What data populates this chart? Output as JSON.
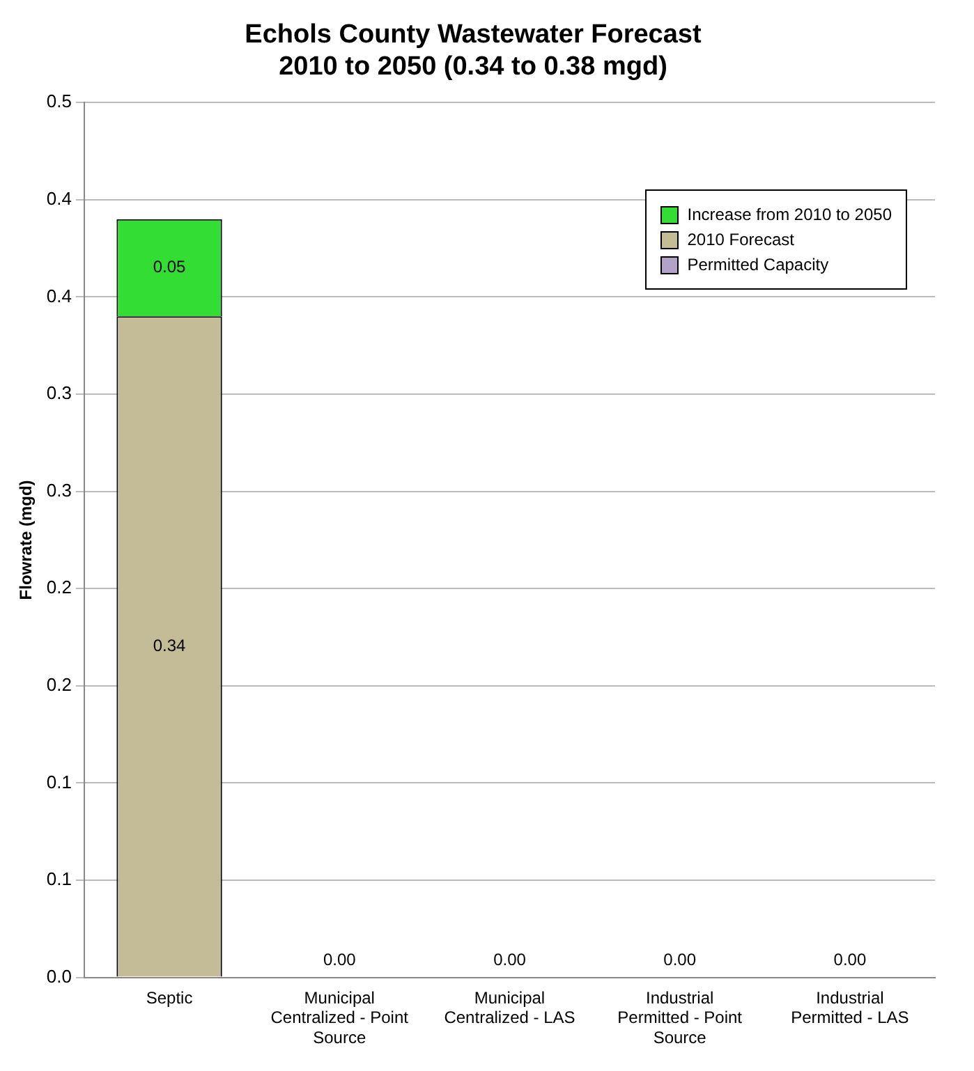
{
  "chart_data": {
    "type": "bar",
    "title": "Echols County Wastewater Forecast\n2010 to 2050 (0.34 to 0.38 mgd)",
    "ylabel": "Flowrate (mgd)",
    "categories": [
      "Septic",
      "Municipal\nCentralized - Point\nSource",
      "Municipal\nCentralized - LAS",
      "Industrial\nPermitted - Point\nSource",
      "Industrial\nPermitted - LAS"
    ],
    "stacked": true,
    "series": [
      {
        "name": "Permitted Capacity",
        "color": "#b3a2c7",
        "values": [
          null,
          null,
          null,
          null,
          null
        ]
      },
      {
        "name": "2010 Forecast",
        "color": "#c4bc96",
        "values": [
          0.34,
          0,
          0,
          0,
          0
        ],
        "value_labels": [
          "0.34",
          "0.00",
          "0.00",
          "0.00",
          "0.00"
        ]
      },
      {
        "name": "Increase from 2010 to 2050",
        "color": "#33dd33",
        "values": [
          0.05,
          null,
          null,
          null,
          null
        ],
        "value_labels": [
          "0.05",
          null,
          null,
          null,
          null
        ]
      }
    ],
    "ylim": [
      0,
      0.45
    ],
    "yticks": [
      {
        "value": 0,
        "label": "0.0"
      },
      {
        "value": 0.05,
        "label": "0.1"
      },
      {
        "value": 0.1,
        "label": "0.1"
      },
      {
        "value": 0.15,
        "label": "0.2"
      },
      {
        "value": 0.2,
        "label": "0.2"
      },
      {
        "value": 0.25,
        "label": "0.3"
      },
      {
        "value": 0.3,
        "label": "0.3"
      },
      {
        "value": 0.35,
        "label": "0.4"
      },
      {
        "value": 0.4,
        "label": "0.4"
      },
      {
        "value": 0.45,
        "label": "0.5"
      }
    ],
    "grid": "y",
    "legend": "top right"
  }
}
